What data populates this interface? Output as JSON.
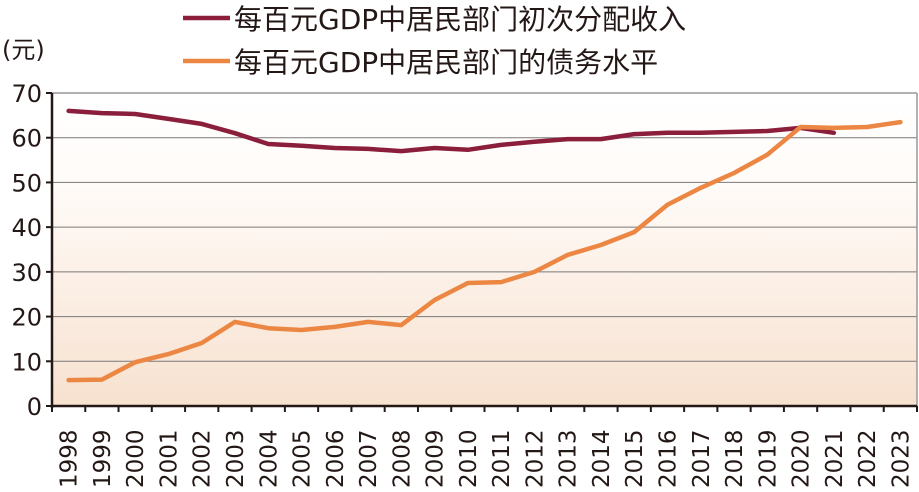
{
  "chart_data": {
    "type": "line",
    "ylabel": "(元)",
    "ylim": [
      0,
      70
    ],
    "yticks": [
      0,
      10,
      20,
      30,
      40,
      50,
      60,
      70
    ],
    "grid": true,
    "legend_placement": "top",
    "categories": [
      "1998",
      "1999",
      "2000",
      "2001",
      "2002",
      "2003",
      "2004",
      "2005",
      "2006",
      "2007",
      "2008",
      "2009",
      "2010",
      "2011",
      "2012",
      "2013",
      "2014",
      "2015",
      "2016",
      "2017",
      "2018",
      "2019",
      "2020",
      "2021",
      "2022",
      "2023"
    ],
    "series": [
      {
        "name": "每百元GDP中居民部门初次分配收入",
        "color": "#8b1e3a",
        "values": [
          66.0,
          65.5,
          65.3,
          64.2,
          63.1,
          61.0,
          58.6,
          58.2,
          57.7,
          57.5,
          57.0,
          57.7,
          57.3,
          58.4,
          59.1,
          59.7,
          59.7,
          60.8,
          61.1,
          61.1,
          61.3,
          61.5,
          62.2,
          61.1,
          null,
          null
        ]
      },
      {
        "name": "每百元GDP中居民部门的债务水平",
        "color": "#ec8743",
        "values": [
          5.8,
          5.9,
          9.8,
          11.6,
          14.1,
          18.8,
          17.4,
          17.0,
          17.7,
          18.8,
          18.1,
          23.7,
          27.5,
          27.7,
          30.0,
          33.8,
          36.0,
          38.9,
          45.0,
          48.8,
          52.1,
          56.2,
          62.4,
          62.2,
          62.4,
          63.5
        ]
      }
    ]
  }
}
